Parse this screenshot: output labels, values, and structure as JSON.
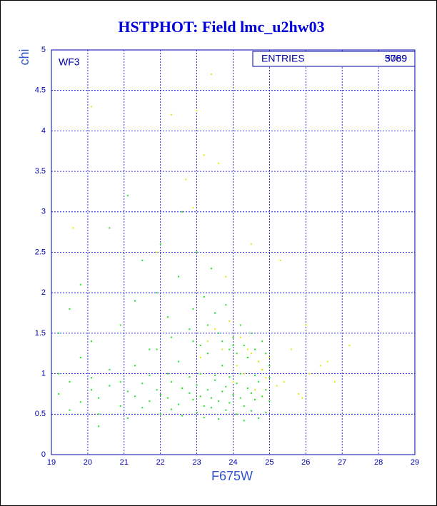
{
  "chart_data": {
    "type": "scatter",
    "title": "HSTPHOT: Field lmc_u2hw03",
    "x_label": "F675W",
    "y_label": "chi",
    "panel_label": "WF3",
    "stats_label": "ENTRIES",
    "stats_values": [
      "3789",
      "5069"
    ],
    "xlim": [
      19,
      29
    ],
    "ylim": [
      0,
      5
    ],
    "xticks": [
      19,
      20,
      21,
      22,
      23,
      24,
      25,
      26,
      27,
      28,
      29
    ],
    "yticks": [
      0,
      0.5,
      1,
      1.5,
      2,
      2.5,
      3,
      3.5,
      4,
      4.5,
      5
    ],
    "grid": true,
    "series": [
      {
        "color": "#22e022",
        "x": [
          19.2,
          19.5,
          19.8,
          20.1,
          20.3,
          20.6,
          20.9,
          21.1,
          21.3,
          21.5,
          21.7,
          21.9,
          22.0,
          22.2,
          22.3,
          22.5,
          22.6,
          22.8,
          22.9,
          23.0,
          23.1,
          23.2,
          23.3,
          23.4,
          23.5,
          23.6,
          23.7,
          23.8,
          23.9,
          24.0,
          24.1,
          24.2,
          24.3,
          24.4,
          24.5,
          24.6,
          24.7,
          24.8,
          24.9,
          25.0,
          19.2,
          19.5,
          19.8,
          20.1,
          20.3,
          20.6,
          20.9,
          21.1,
          21.3,
          21.5,
          21.7,
          21.9,
          22.0,
          22.2,
          22.3,
          22.5,
          22.6,
          22.8,
          22.9,
          23.0,
          23.1,
          23.2,
          23.3,
          23.4,
          23.5,
          23.6,
          23.7,
          23.8,
          23.9,
          24.0,
          24.1,
          24.2,
          24.3,
          24.4,
          24.5,
          24.6,
          24.7,
          24.8,
          24.9,
          25.0,
          19.2,
          19.5,
          19.8,
          20.1,
          20.3,
          20.6,
          20.9,
          21.1,
          21.3,
          21.5,
          21.7,
          21.9,
          22.0,
          22.2,
          22.3,
          22.5,
          22.6,
          22.8,
          22.9,
          23.0,
          23.1,
          23.2,
          23.3,
          23.4,
          23.5,
          23.6,
          23.7,
          23.8,
          23.9,
          24.0,
          24.1,
          24.2,
          24.3,
          24.4,
          24.5,
          24.6,
          24.7,
          24.8,
          24.9,
          25.0
        ],
        "values": [
          0.75,
          0.9,
          0.65,
          0.8,
          0.7,
          0.85,
          0.6,
          0.78,
          0.72,
          0.88,
          0.66,
          0.8,
          0.74,
          0.7,
          0.9,
          0.62,
          0.82,
          0.76,
          0.68,
          0.86,
          0.72,
          0.6,
          0.8,
          0.7,
          0.92,
          0.66,
          0.78,
          0.84,
          0.64,
          0.74,
          0.88,
          0.7,
          0.6,
          0.82,
          0.76,
          0.68,
          0.9,
          0.72,
          0.8,
          0.66,
          1.0,
          0.55,
          1.2,
          0.95,
          0.5,
          1.05,
          0.9,
          0.45,
          1.1,
          0.58,
          0.98,
          1.3,
          0.5,
          1.0,
          0.56,
          1.15,
          0.48,
          0.96,
          1.4,
          0.52,
          1.0,
          0.46,
          1.25,
          0.58,
          0.98,
          0.44,
          1.1,
          0.55,
          0.96,
          1.35,
          0.5,
          1.0,
          0.42,
          1.2,
          0.54,
          0.98,
          0.45,
          1.05,
          0.52,
          0.95,
          1.5,
          1.8,
          2.1,
          1.4,
          0.35,
          2.8,
          1.6,
          3.2,
          1.9,
          2.4,
          1.3,
          2.0,
          2.6,
          1.7,
          1.45,
          2.2,
          3.0,
          1.55,
          1.8,
          2.5,
          1.35,
          1.95,
          1.6,
          2.3,
          1.75,
          1.5,
          1.4,
          1.85,
          1.3,
          1.45,
          1.25,
          1.6,
          1.35,
          1.2,
          1.5,
          1.3,
          1.15,
          1.4,
          1.25,
          1.1
        ]
      },
      {
        "color": "#e8e800",
        "x": [
          23.1,
          23.3,
          23.5,
          23.7,
          23.9,
          24.0,
          24.1,
          24.2,
          24.3,
          24.4,
          24.5,
          24.6,
          24.7,
          24.8,
          24.9,
          25.0,
          25.2,
          25.4,
          25.6,
          25.8,
          26.1,
          26.4,
          26.8,
          27.2,
          22.3,
          22.7,
          23.0,
          23.4,
          23.2,
          22.9,
          20.1,
          19.6,
          21.9,
          23.8,
          24.5,
          25.3,
          26.0,
          26.6,
          23.6,
          25.9
        ],
        "values": [
          1.2,
          1.4,
          1.55,
          1.3,
          1.65,
          0.9,
          1.1,
          1.45,
          1.0,
          1.3,
          1.25,
          0.8,
          1.15,
          1.05,
          0.95,
          1.2,
          0.85,
          0.9,
          1.3,
          0.75,
          1.0,
          1.1,
          0.9,
          1.35,
          4.2,
          3.4,
          4.25,
          4.7,
          3.7,
          3.05,
          4.3,
          2.8,
          2.5,
          2.2,
          2.6,
          2.4,
          1.6,
          1.15,
          3.6,
          0.7
        ]
      }
    ]
  }
}
